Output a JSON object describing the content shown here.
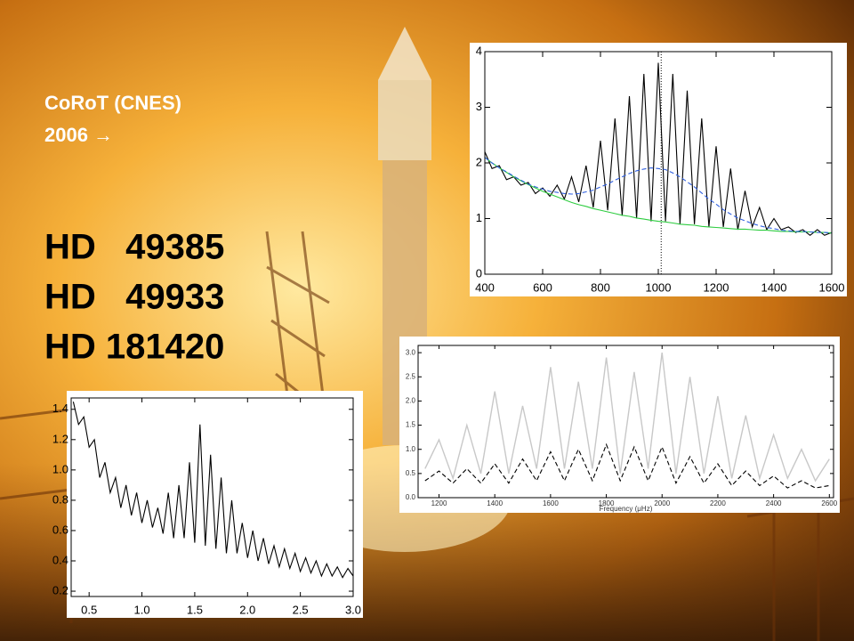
{
  "slide": {
    "lines": [
      "CoRoT (CNES)",
      "2006 →"
    ],
    "targets": [
      "HD   49385",
      "HD   49933",
      "HD 181420"
    ]
  },
  "chart_data": [
    {
      "type": "line",
      "x": [
        400,
        425,
        450,
        475,
        500,
        525,
        550,
        575,
        600,
        625,
        650,
        675,
        700,
        725,
        750,
        775,
        800,
        825,
        850,
        875,
        900,
        925,
        950,
        975,
        1000,
        1025,
        1050,
        1075,
        1100,
        1125,
        1150,
        1175,
        1200,
        1225,
        1250,
        1275,
        1300,
        1325,
        1350,
        1375,
        1400,
        1425,
        1450,
        1475,
        1500,
        1525,
        1550,
        1575,
        1600
      ],
      "series": [
        {
          "color": "#000000",
          "linestyle": "solid",
          "values": [
            2.2,
            1.9,
            1.95,
            1.7,
            1.75,
            1.6,
            1.65,
            1.45,
            1.55,
            1.4,
            1.6,
            1.35,
            1.75,
            1.3,
            1.95,
            1.2,
            2.4,
            1.15,
            2.8,
            1.05,
            3.2,
            1.0,
            3.6,
            0.95,
            3.8,
            0.95,
            3.6,
            0.9,
            3.3,
            0.9,
            2.8,
            0.85,
            2.3,
            0.85,
            1.9,
            0.8,
            1.5,
            0.85,
            1.2,
            0.8,
            1.0,
            0.8,
            0.85,
            0.75,
            0.8,
            0.7,
            0.8,
            0.7,
            0.75
          ]
        },
        {
          "color": "#2ecc40",
          "linestyle": "solid",
          "values": [
            2.1,
            2.0,
            1.91,
            1.83,
            1.75,
            1.68,
            1.61,
            1.55,
            1.49,
            1.44,
            1.39,
            1.34,
            1.29,
            1.25,
            1.22,
            1.18,
            1.15,
            1.12,
            1.09,
            1.06,
            1.04,
            1.01,
            0.99,
            0.97,
            0.95,
            0.94,
            0.92,
            0.9,
            0.89,
            0.88,
            0.86,
            0.85,
            0.84,
            0.83,
            0.82,
            0.81,
            0.81,
            0.8,
            0.79,
            0.79,
            0.78,
            0.77,
            0.77,
            0.76,
            0.76,
            0.76,
            0.75,
            0.75,
            0.74
          ]
        },
        {
          "color": "#3060e0",
          "linestyle": "dashed",
          "values": [
            2.1,
            2.0,
            1.91,
            1.84,
            1.76,
            1.69,
            1.62,
            1.57,
            1.53,
            1.49,
            1.47,
            1.45,
            1.44,
            1.45,
            1.48,
            1.51,
            1.57,
            1.62,
            1.69,
            1.75,
            1.81,
            1.86,
            1.89,
            1.91,
            1.9,
            1.88,
            1.82,
            1.75,
            1.66,
            1.57,
            1.46,
            1.35,
            1.26,
            1.16,
            1.08,
            1.01,
            0.96,
            0.91,
            0.87,
            0.84,
            0.82,
            0.79,
            0.78,
            0.77,
            0.77,
            0.76,
            0.75,
            0.75,
            0.74
          ]
        }
      ],
      "vline": 1010,
      "xlim": [
        400,
        1600
      ],
      "xticks": [
        400,
        600,
        800,
        1000,
        1200,
        1400,
        1600
      ],
      "ylim": [
        0,
        4
      ],
      "yticks": [
        0,
        1,
        2,
        3,
        4
      ]
    },
    {
      "type": "line",
      "x_label": "Frequency (μHz)",
      "x": [
        1150,
        1200,
        1250,
        1300,
        1350,
        1400,
        1450,
        1500,
        1550,
        1600,
        1650,
        1700,
        1750,
        1800,
        1850,
        1900,
        1950,
        2000,
        2050,
        2100,
        2150,
        2200,
        2250,
        2300,
        2350,
        2400,
        2450,
        2500,
        2550,
        2600
      ],
      "series": [
        {
          "color": "#c8c8c8",
          "linestyle": "solid",
          "values": [
            0.6,
            1.2,
            0.4,
            1.5,
            0.5,
            2.2,
            0.5,
            1.9,
            0.6,
            2.7,
            0.6,
            2.4,
            0.6,
            2.9,
            0.5,
            2.6,
            0.6,
            3.0,
            0.5,
            2.5,
            0.5,
            2.1,
            0.4,
            1.7,
            0.4,
            1.3,
            0.4,
            1.0,
            0.35,
            0.8
          ]
        },
        {
          "color": "#000000",
          "linestyle": "dashed",
          "values": [
            0.35,
            0.55,
            0.3,
            0.6,
            0.3,
            0.7,
            0.3,
            0.8,
            0.35,
            0.95,
            0.35,
            1.0,
            0.35,
            1.1,
            0.35,
            1.05,
            0.35,
            1.05,
            0.3,
            0.85,
            0.3,
            0.7,
            0.25,
            0.55,
            0.25,
            0.45,
            0.2,
            0.35,
            0.2,
            0.25
          ]
        }
      ],
      "xlim": [
        1125,
        2615
      ],
      "xticks": [
        1200,
        1400,
        1600,
        1800,
        2000,
        2200,
        2400,
        2600
      ],
      "ylim": [
        0,
        3.15
      ],
      "yticks": [
        {
          "value": 0,
          "label": "0.0"
        },
        0.5,
        {
          "value": 1,
          "label": "1.0"
        },
        1.5,
        {
          "value": 2,
          "label": "2.0"
        },
        2.5,
        {
          "value": 3,
          "label": "3.0"
        }
      ]
    },
    {
      "type": "line",
      "x": [
        0.35,
        0.4,
        0.45,
        0.5,
        0.55,
        0.6,
        0.65,
        0.7,
        0.75,
        0.8,
        0.85,
        0.9,
        0.95,
        1.0,
        1.05,
        1.1,
        1.15,
        1.2,
        1.25,
        1.3,
        1.35,
        1.4,
        1.45,
        1.5,
        1.55,
        1.6,
        1.65,
        1.7,
        1.75,
        1.8,
        1.85,
        1.9,
        1.95,
        2.0,
        2.05,
        2.1,
        2.15,
        2.2,
        2.25,
        2.3,
        2.35,
        2.4,
        2.45,
        2.5,
        2.55,
        2.6,
        2.65,
        2.7,
        2.75,
        2.8,
        2.85,
        2.9,
        2.95,
        3.0
      ],
      "series": [
        {
          "color": "#000000",
          "linestyle": "solid",
          "values": [
            1.45,
            1.3,
            1.35,
            1.15,
            1.2,
            0.95,
            1.05,
            0.85,
            0.95,
            0.75,
            0.9,
            0.7,
            0.85,
            0.65,
            0.8,
            0.62,
            0.75,
            0.58,
            0.85,
            0.55,
            0.9,
            0.55,
            1.05,
            0.52,
            1.3,
            0.5,
            1.1,
            0.48,
            0.95,
            0.45,
            0.8,
            0.45,
            0.65,
            0.42,
            0.6,
            0.4,
            0.55,
            0.38,
            0.5,
            0.36,
            0.48,
            0.35,
            0.45,
            0.33,
            0.42,
            0.32,
            0.4,
            0.3,
            0.38,
            0.3,
            0.36,
            0.29,
            0.35,
            0.3
          ]
        }
      ],
      "xlim": [
        0.33,
        3.0
      ],
      "xticks": [
        0.5,
        {
          "value": 1,
          "label": "1.0"
        },
        1.5,
        {
          "value": 2,
          "label": "2.0"
        },
        2.5,
        {
          "value": 3,
          "label": "3.0"
        }
      ],
      "ylim": [
        0.165,
        1.475
      ],
      "yticks": [
        0.2,
        0.4,
        0.6,
        0.8,
        {
          "value": 1,
          "label": "1.0"
        },
        1.2,
        1.4
      ]
    }
  ]
}
